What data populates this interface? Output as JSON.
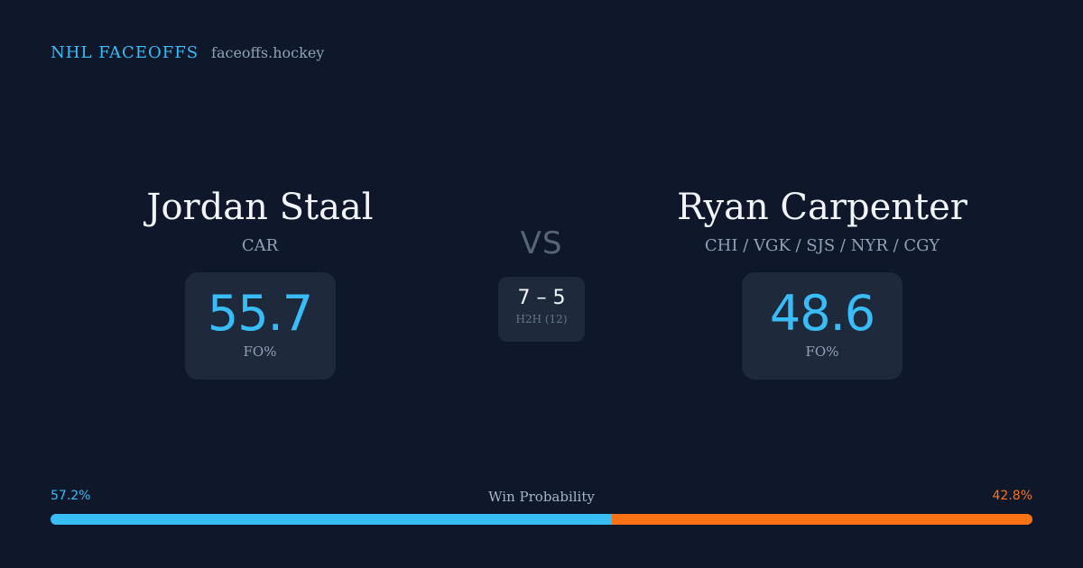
{
  "brand": {
    "title": "NHL FACEOFFS",
    "domain": "faceoffs.hockey"
  },
  "players": {
    "left": {
      "name": "Jordan Staal",
      "team": "CAR",
      "fo_pct": "55.7",
      "fo_label": "FO%"
    },
    "right": {
      "name": "Ryan Carpenter",
      "team": "CHI / VGK / SJS / NYR / CGY",
      "fo_pct": "48.6",
      "fo_label": "FO%"
    }
  },
  "matchup": {
    "vs_label": "VS",
    "h2h_score": "7 – 5",
    "h2h_label": "H2H (12)"
  },
  "win_probability": {
    "title": "Win Probability",
    "left_label": "57.2%",
    "right_label": "42.8%",
    "left_value": 57.2,
    "right_value": 42.8
  },
  "colors": {
    "background": "#0f172a",
    "card": "#1e293b",
    "accent_blue": "#38bdf8",
    "accent_orange": "#f97316"
  }
}
